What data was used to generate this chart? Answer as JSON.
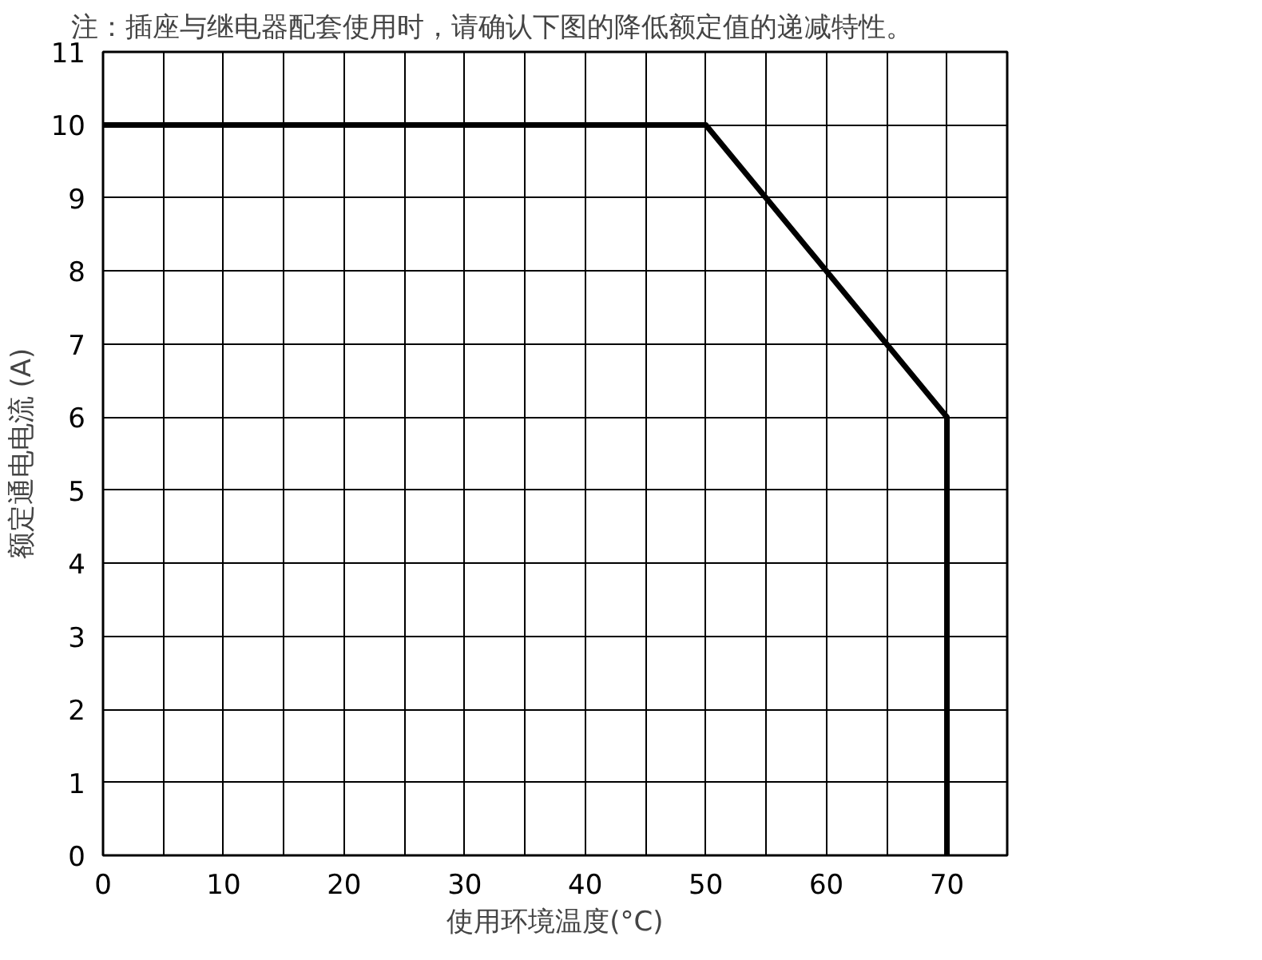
{
  "chart_data": {
    "type": "line",
    "annotations": [
      "注：插座与继电器配套使用时，请确认下图的降低额定值的递减特性。"
    ],
    "xlabel": "使用环境温度(°C)",
    "ylabel": "额定通电电流 (A)",
    "x": [
      0,
      50,
      70,
      70
    ],
    "series": [
      {
        "color": "#000000",
        "values": [
          10,
          10,
          6,
          0
        ]
      }
    ],
    "xlim": [
      0,
      75
    ],
    "ylim": [
      0,
      11
    ],
    "xticks": [
      0,
      {
        "value": 5,
        "label": null
      },
      10,
      {
        "value": 15,
        "label": null
      },
      20,
      {
        "value": 25,
        "label": null
      },
      30,
      {
        "value": 35,
        "label": null
      },
      40,
      {
        "value": 45,
        "label": null
      },
      50,
      {
        "value": 55,
        "label": null
      },
      60,
      {
        "value": 65,
        "label": null
      },
      70,
      {
        "value": 75,
        "label": null
      }
    ],
    "yticks": [
      0,
      1,
      2,
      3,
      4,
      5,
      6,
      7,
      8,
      9,
      10,
      11
    ],
    "grid": true,
    "marker": "none",
    "line_style": "solid"
  }
}
